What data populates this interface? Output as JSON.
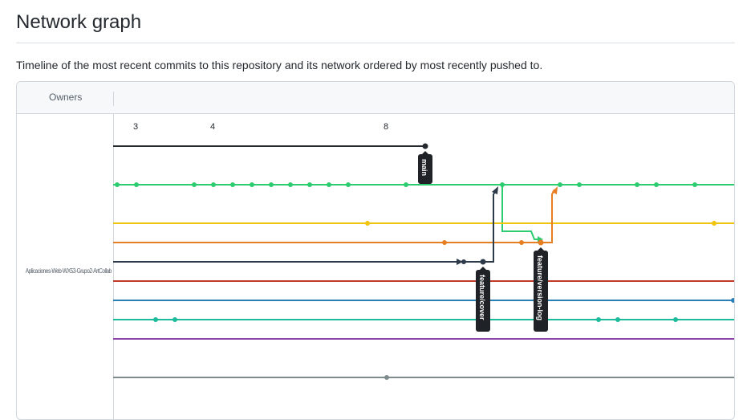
{
  "page": {
    "title": "Network graph",
    "subtitle": "Timeline of the most recent commits to this repository and its network ordered by most recently pushed to."
  },
  "graph": {
    "owners_label": "Owners",
    "repo_label": "Aplicaciones-Web-WX53-Grupo2-ArtCollab",
    "ticks": [
      "3",
      "4",
      "8"
    ],
    "branches": [
      {
        "label": "main",
        "color": "#24292f"
      },
      {
        "label": "feature/cover",
        "color": "#2d3a4a"
      },
      {
        "label": "feature/version-log",
        "color": "#e67e22"
      }
    ],
    "lane_colors": {
      "main": "#24292f",
      "green": "#2ecc71",
      "yellow": "#f1c40f",
      "orange": "#e67e22",
      "navy": "#2d3a4a",
      "red": "#c0392b",
      "blue": "#2980b9",
      "teal": "#1abc9c",
      "purple": "#8e44ad",
      "gray": "#7f8c8d"
    }
  }
}
